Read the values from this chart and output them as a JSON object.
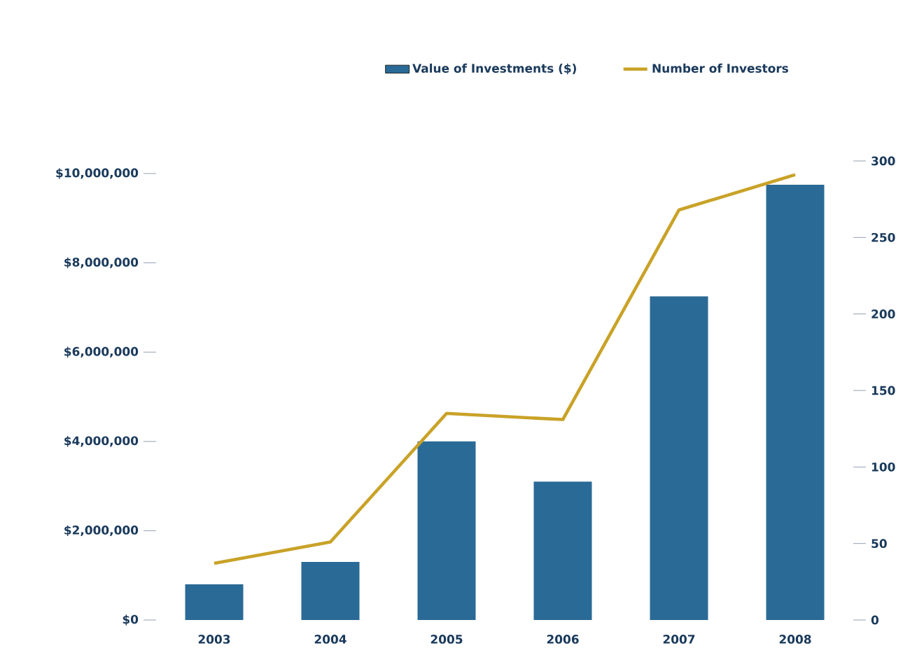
{
  "chart_data": {
    "type": "bar",
    "categories": [
      "2003",
      "2004",
      "2005",
      "2006",
      "2007",
      "2008"
    ],
    "series": [
      {
        "name": "Value of Investments ($)",
        "color": "#2a6a96",
        "values": [
          800000,
          1300000,
          4000000,
          3100000,
          7250000,
          9750000
        ]
      },
      {
        "name": "Number of Investors",
        "type": "line",
        "axis": "y2",
        "color": "#c9a227",
        "values": [
          37,
          51,
          135,
          131,
          268,
          291
        ]
      }
    ],
    "ylim": [
      0,
      10000000
    ],
    "yticks": [
      {
        "value": 0,
        "label": "$0"
      },
      {
        "value": 2000000,
        "label": "$2,000,000"
      },
      {
        "value": 4000000,
        "label": "$4,000,000"
      },
      {
        "value": 6000000,
        "label": "$6,000,000"
      },
      {
        "value": 8000000,
        "label": "$8,000,000"
      },
      {
        "value": 10000000,
        "label": "$10,000,000"
      }
    ],
    "y2lim": [
      0,
      300
    ],
    "y2ticks": [
      0,
      50,
      100,
      150,
      200,
      250,
      300
    ],
    "legend": "top"
  }
}
